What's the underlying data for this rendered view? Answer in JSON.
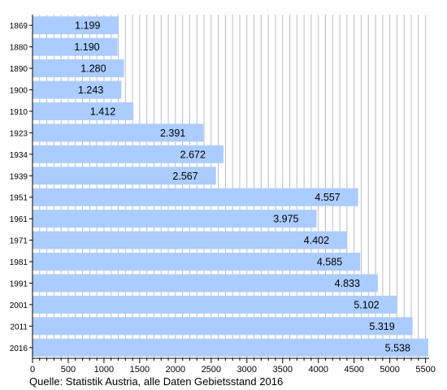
{
  "chart_data": {
    "type": "bar",
    "orientation": "horizontal",
    "categories": [
      "1869",
      "1880",
      "1890",
      "1900",
      "1910",
      "1923",
      "1934",
      "1939",
      "1951",
      "1961",
      "1971",
      "1981",
      "1991",
      "2001",
      "2011",
      "2016"
    ],
    "values": [
      1199,
      1190,
      1280,
      1243,
      1412,
      2391,
      2672,
      2567,
      4557,
      3975,
      4402,
      4585,
      4833,
      5102,
      5319,
      5538
    ],
    "value_labels": [
      "1.199",
      "1.190",
      "1.280",
      "1.243",
      "1.412",
      "2.391",
      "2.672",
      "2.567",
      "4.557",
      "3.975",
      "4.402",
      "4.585",
      "4.833",
      "5.102",
      "5.319",
      "5.538"
    ],
    "x_ticks": [
      "0",
      "500",
      "1000",
      "1500",
      "2000",
      "2500",
      "3000",
      "3500",
      "4000",
      "4500",
      "5000",
      "5500"
    ],
    "xlim": [
      0,
      5550
    ],
    "grid": "vertical lines every 100",
    "bar_color": "#aaccff",
    "grid_color": "#bdbdbd"
  },
  "source_note": "Quelle: Statistik Austria, alle Daten Gebietsstand 2016"
}
